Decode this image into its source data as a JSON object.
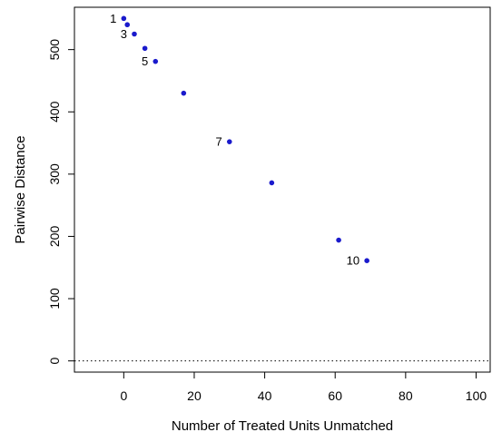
{
  "chart_data": {
    "type": "scatter",
    "xlabel": "Number of Treated Units Unmatched",
    "ylabel": "Pairwise Distance",
    "xlim": [
      -14,
      104
    ],
    "ylim": [
      -18,
      568
    ],
    "xticks": [
      "0",
      "20",
      "40",
      "60",
      "80",
      "100"
    ],
    "xtick_values": [
      0,
      20,
      40,
      60,
      80,
      100
    ],
    "yticks": [
      "0",
      "100",
      "200",
      "300",
      "400",
      "500"
    ],
    "ytick_values": [
      0,
      100,
      200,
      300,
      400,
      500
    ],
    "grid": false,
    "reference_line": {
      "y": 0,
      "style": "dotted",
      "color": "#000000"
    },
    "point_color": "#1a1acc",
    "points": [
      {
        "x": 0,
        "y": 550,
        "label": "1"
      },
      {
        "x": 1,
        "y": 540,
        "label": ""
      },
      {
        "x": 3,
        "y": 525,
        "label": "3"
      },
      {
        "x": 6,
        "y": 502,
        "label": ""
      },
      {
        "x": 9,
        "y": 481,
        "label": "5"
      },
      {
        "x": 17,
        "y": 430,
        "label": ""
      },
      {
        "x": 30,
        "y": 352,
        "label": "7"
      },
      {
        "x": 42,
        "y": 286,
        "label": ""
      },
      {
        "x": 61,
        "y": 194,
        "label": ""
      },
      {
        "x": 69,
        "y": 161,
        "label": "10"
      }
    ]
  }
}
